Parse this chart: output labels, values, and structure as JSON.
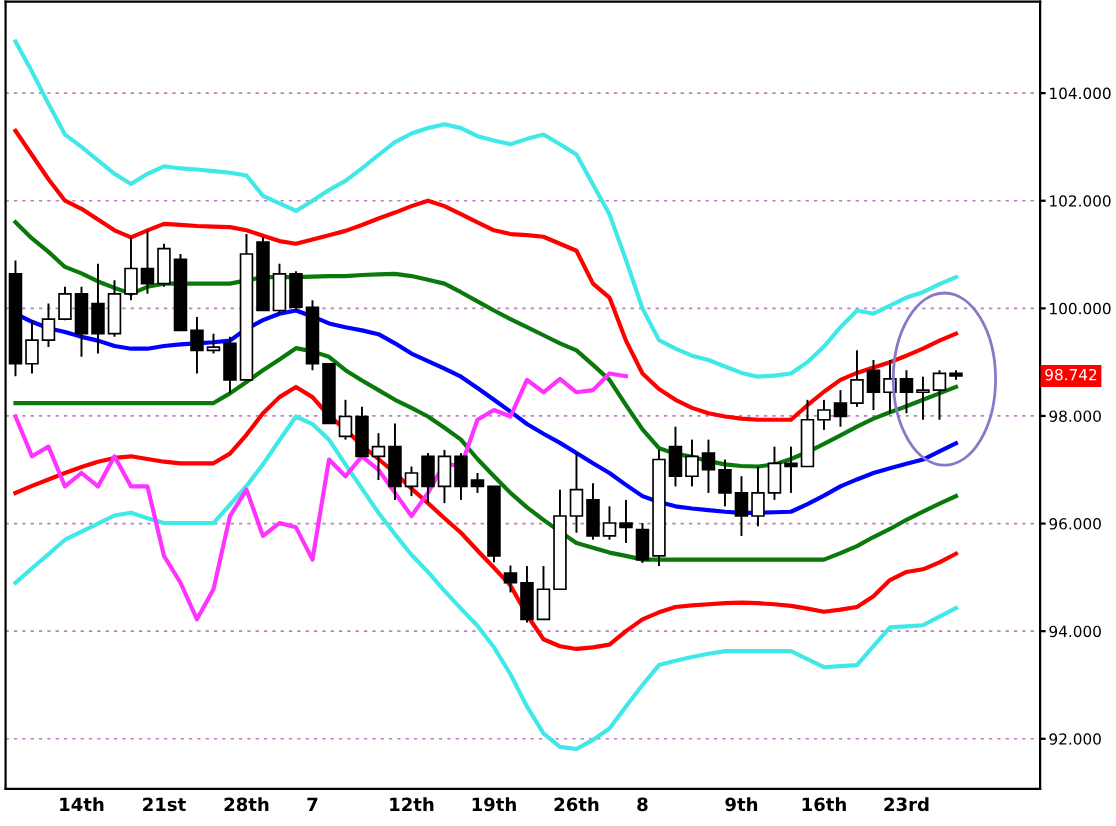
{
  "chart_data": {
    "type": "candlestick",
    "categories": [
      null,
      null,
      null,
      null,
      "14th",
      null,
      null,
      null,
      null,
      "21st",
      null,
      null,
      null,
      null,
      "28th",
      null,
      null,
      null,
      "7",
      null,
      null,
      null,
      null,
      null,
      "12th",
      null,
      null,
      null,
      null,
      "19th",
      null,
      null,
      null,
      null,
      "26th",
      null,
      null,
      null,
      "8",
      null,
      null,
      null,
      null,
      null,
      "9th",
      null,
      null,
      null,
      null,
      "16th",
      null,
      null,
      null,
      null,
      "23rd",
      null,
      null,
      null
    ],
    "ohlc": [
      [
        100.64,
        100.89,
        98.74,
        98.97
      ],
      [
        98.97,
        99.78,
        98.79,
        99.41
      ],
      [
        99.41,
        100.09,
        99.28,
        99.8
      ],
      [
        99.8,
        100.4,
        99.78,
        100.27
      ],
      [
        100.27,
        100.4,
        99.1,
        99.53
      ],
      [
        100.09,
        100.83,
        99.16,
        99.53
      ],
      [
        99.53,
        100.52,
        99.47,
        100.27
      ],
      [
        100.27,
        101.32,
        100.15,
        100.74
      ],
      [
        100.74,
        101.44,
        100.27,
        100.46
      ],
      [
        100.46,
        101.2,
        100.4,
        101.11
      ],
      [
        100.91,
        101.01,
        99.59,
        99.59
      ],
      [
        99.59,
        99.84,
        98.79,
        99.22
      ],
      [
        99.22,
        99.53,
        99.16,
        99.28
      ],
      [
        99.35,
        99.47,
        98.42,
        98.67
      ],
      [
        98.67,
        101.38,
        98.67,
        101.01
      ],
      [
        101.23,
        101.32,
        99.96,
        99.96
      ],
      [
        99.96,
        100.83,
        99.9,
        100.64
      ],
      [
        100.64,
        100.69,
        99.96,
        100.02
      ],
      [
        100.02,
        100.15,
        98.85,
        98.97
      ],
      [
        98.97,
        98.97,
        97.86,
        97.86
      ],
      [
        97.62,
        98.3,
        97.56,
        97.99
      ],
      [
        97.99,
        98.17,
        97.25,
        97.25
      ],
      [
        97.25,
        97.68,
        96.81,
        97.43
      ],
      [
        97.43,
        97.86,
        96.44,
        96.69
      ],
      [
        96.69,
        97.06,
        96.51,
        96.94
      ],
      [
        97.25,
        97.31,
        96.38,
        96.69
      ],
      [
        96.69,
        97.37,
        96.38,
        97.25
      ],
      [
        97.25,
        97.31,
        96.44,
        96.69
      ],
      [
        96.81,
        96.94,
        96.57,
        96.69
      ],
      [
        96.69,
        96.69,
        95.28,
        95.4
      ],
      [
        95.08,
        95.22,
        94.72,
        94.9
      ],
      [
        94.9,
        95.21,
        94.16,
        94.22
      ],
      [
        94.22,
        95.21,
        94.22,
        94.78
      ],
      [
        94.78,
        96.63,
        94.78,
        96.14
      ],
      [
        96.14,
        97.31,
        95.83,
        96.63
      ],
      [
        96.44,
        96.75,
        95.7,
        95.77
      ],
      [
        95.77,
        96.32,
        95.7,
        96.01
      ],
      [
        96.01,
        96.44,
        95.64,
        95.93
      ],
      [
        95.89,
        96.01,
        95.27,
        95.33
      ],
      [
        95.4,
        97.37,
        95.21,
        97.19
      ],
      [
        97.43,
        97.8,
        96.69,
        96.88
      ],
      [
        96.88,
        97.56,
        96.69,
        97.25
      ],
      [
        97.31,
        97.56,
        96.57,
        97.0
      ],
      [
        97.0,
        97.19,
        96.32,
        96.57
      ],
      [
        96.57,
        96.88,
        95.77,
        96.14
      ],
      [
        96.14,
        97.06,
        95.95,
        96.57
      ],
      [
        96.57,
        97.43,
        96.44,
        97.12
      ],
      [
        97.12,
        97.43,
        96.57,
        97.06
      ],
      [
        97.06,
        98.3,
        97.06,
        97.93
      ],
      [
        97.93,
        98.3,
        97.74,
        98.11
      ],
      [
        98.24,
        98.48,
        97.8,
        97.99
      ],
      [
        98.24,
        99.22,
        98.17,
        98.67
      ],
      [
        98.85,
        99.04,
        98.11,
        98.44
      ],
      [
        98.44,
        99.04,
        98.05,
        98.69
      ],
      [
        98.69,
        98.85,
        98.05,
        98.44
      ],
      [
        98.44,
        98.73,
        97.93,
        98.48
      ],
      [
        98.48,
        98.85,
        97.93,
        98.79
      ],
      [
        98.79,
        98.85,
        98.67,
        98.742
      ]
    ],
    "series": [
      {
        "type": "line",
        "color": "#40e8e8",
        "values": [
          104.96,
          104.4,
          103.8,
          103.23,
          103.0,
          102.75,
          102.5,
          102.31,
          102.5,
          102.64,
          102.6,
          102.58,
          102.55,
          102.52,
          102.47,
          102.09,
          101.95,
          101.81,
          102.0,
          102.2,
          102.37,
          102.6,
          102.85,
          103.09,
          103.25,
          103.35,
          103.42,
          103.35,
          103.2,
          103.12,
          103.05,
          103.15,
          103.23,
          103.05,
          102.86,
          102.3,
          101.75,
          100.9,
          100.0,
          99.41,
          99.25,
          99.12,
          99.04,
          98.92,
          98.8,
          98.73,
          98.75,
          98.79,
          99.0,
          99.29,
          99.65,
          99.96,
          99.9,
          100.05,
          100.2,
          100.3,
          100.45,
          100.58
        ]
      },
      {
        "type": "line",
        "color": "#ff0000",
        "values": [
          103.3,
          102.85,
          102.4,
          102.0,
          101.85,
          101.65,
          101.45,
          101.32,
          101.45,
          101.57,
          101.55,
          101.53,
          101.52,
          101.51,
          101.45,
          101.35,
          101.25,
          101.2,
          101.28,
          101.36,
          101.44,
          101.55,
          101.67,
          101.78,
          101.9,
          102.0,
          101.9,
          101.75,
          101.6,
          101.45,
          101.38,
          101.36,
          101.33,
          101.2,
          101.07,
          100.46,
          100.2,
          99.4,
          98.79,
          98.5,
          98.3,
          98.15,
          98.05,
          97.99,
          97.95,
          97.93,
          97.93,
          97.93,
          98.2,
          98.45,
          98.67,
          98.8,
          98.9,
          99.0,
          99.12,
          99.25,
          99.4,
          99.53
        ]
      },
      {
        "type": "line",
        "color": "#0a780a",
        "values": [
          101.6,
          101.3,
          101.05,
          100.77,
          100.65,
          100.5,
          100.38,
          100.27,
          100.4,
          100.46,
          100.46,
          100.46,
          100.46,
          100.46,
          100.52,
          100.58,
          100.58,
          100.58,
          100.59,
          100.6,
          100.6,
          100.62,
          100.63,
          100.64,
          100.6,
          100.53,
          100.46,
          100.3,
          100.13,
          99.96,
          99.8,
          99.65,
          99.5,
          99.35,
          99.22,
          98.95,
          98.67,
          98.2,
          97.75,
          97.4,
          97.3,
          97.24,
          97.16,
          97.1,
          97.07,
          97.06,
          97.1,
          97.2,
          97.33,
          97.48,
          97.64,
          97.8,
          97.95,
          98.07,
          98.18,
          98.3,
          98.42,
          98.54
        ]
      },
      {
        "type": "line",
        "color": "#0000ff",
        "values": [
          99.9,
          99.75,
          99.63,
          99.56,
          99.47,
          99.4,
          99.3,
          99.25,
          99.25,
          99.3,
          99.33,
          99.35,
          99.37,
          99.4,
          99.62,
          99.78,
          99.9,
          99.96,
          99.85,
          99.72,
          99.65,
          99.59,
          99.52,
          99.35,
          99.16,
          99.02,
          98.88,
          98.73,
          98.52,
          98.3,
          98.08,
          97.85,
          97.67,
          97.5,
          97.31,
          97.12,
          96.94,
          96.72,
          96.51,
          96.4,
          96.32,
          96.28,
          96.25,
          96.22,
          96.2,
          96.2,
          96.21,
          96.22,
          96.36,
          96.52,
          96.69,
          96.82,
          96.94,
          97.03,
          97.11,
          97.19,
          97.34,
          97.49
        ]
      },
      {
        "type": "line",
        "color": "#0a780a",
        "values": [
          98.24,
          98.24,
          98.24,
          98.24,
          98.24,
          98.24,
          98.24,
          98.24,
          98.24,
          98.24,
          98.24,
          98.24,
          98.24,
          98.42,
          98.63,
          98.85,
          99.05,
          99.26,
          99.2,
          99.1,
          98.85,
          98.66,
          98.48,
          98.3,
          98.15,
          97.99,
          97.78,
          97.56,
          97.2,
          96.88,
          96.57,
          96.3,
          96.07,
          95.85,
          95.64,
          95.55,
          95.46,
          95.4,
          95.33,
          95.33,
          95.33,
          95.33,
          95.33,
          95.33,
          95.33,
          95.33,
          95.33,
          95.33,
          95.33,
          95.33,
          95.45,
          95.58,
          95.75,
          95.9,
          96.07,
          96.22,
          96.37,
          96.51
        ]
      },
      {
        "type": "line",
        "color": "#ff0000",
        "values": [
          96.57,
          96.7,
          96.82,
          96.94,
          97.05,
          97.15,
          97.22,
          97.25,
          97.2,
          97.15,
          97.12,
          97.12,
          97.12,
          97.3,
          97.65,
          98.05,
          98.35,
          98.54,
          98.35,
          98.0,
          97.75,
          97.45,
          97.2,
          96.94,
          96.65,
          96.38,
          96.1,
          95.83,
          95.5,
          95.18,
          94.85,
          94.3,
          93.85,
          93.72,
          93.67,
          93.7,
          93.75,
          94.0,
          94.22,
          94.35,
          94.45,
          94.48,
          94.5,
          94.52,
          94.53,
          94.52,
          94.5,
          94.47,
          94.42,
          94.36,
          94.4,
          94.45,
          94.65,
          94.95,
          95.1,
          95.15,
          95.28,
          95.44
        ]
      },
      {
        "type": "line",
        "color": "#40e8e8",
        "values": [
          94.9,
          95.17,
          95.43,
          95.7,
          95.85,
          96.0,
          96.15,
          96.2,
          96.1,
          96.01,
          96.01,
          96.01,
          96.01,
          96.35,
          96.7,
          97.1,
          97.55,
          97.99,
          97.85,
          97.56,
          97.1,
          96.65,
          96.2,
          95.8,
          95.42,
          95.1,
          94.75,
          94.42,
          94.1,
          93.7,
          93.2,
          92.6,
          92.1,
          91.85,
          91.81,
          91.98,
          92.19,
          92.6,
          93.0,
          93.37,
          93.45,
          93.52,
          93.58,
          93.63,
          93.63,
          93.63,
          93.63,
          93.63,
          93.48,
          93.33,
          93.35,
          93.37,
          93.72,
          94.07,
          94.09,
          94.11,
          94.27,
          94.43
        ]
      },
      {
        "type": "line",
        "color": "#ff33ff",
        "values": [
          97.99,
          97.25,
          97.43,
          96.69,
          96.94,
          96.69,
          97.25,
          96.69,
          96.69,
          95.4,
          94.9,
          94.22,
          94.78,
          96.14,
          96.63,
          95.77,
          96.01,
          95.93,
          95.33,
          97.19,
          96.88,
          97.25,
          97.0,
          96.57,
          96.14,
          96.57,
          97.12,
          97.06,
          97.93,
          98.11,
          97.99,
          98.67,
          98.44,
          98.69,
          98.44,
          98.48,
          98.79,
          98.74,
          null,
          null,
          null,
          null,
          null,
          null,
          null,
          null,
          null,
          null,
          null,
          null,
          null,
          null,
          null,
          null,
          null,
          null,
          null,
          null
        ]
      }
    ],
    "ylim": [
      91.07,
      105.7
    ],
    "yticks": [
      {
        "value": 92,
        "label": "92.000"
      },
      {
        "value": 94,
        "label": "94.000"
      },
      {
        "value": 96,
        "label": "96.000"
      },
      {
        "value": 98,
        "label": "98.000"
      },
      {
        "value": 100,
        "label": "100.000"
      },
      {
        "value": 102,
        "label": "102.000"
      },
      {
        "value": 104,
        "label": "104.000"
      }
    ],
    "grid": "y",
    "annotations": [
      "98.742"
    ]
  }
}
